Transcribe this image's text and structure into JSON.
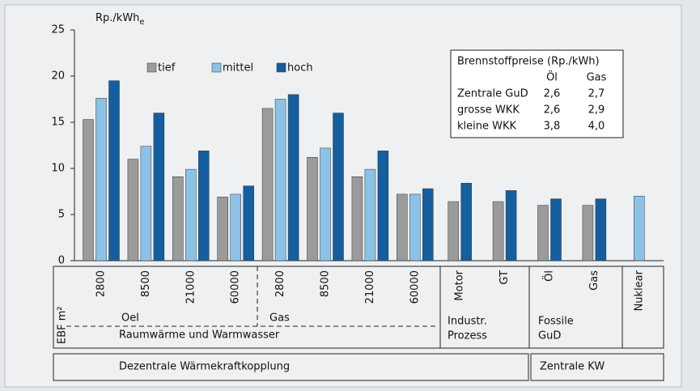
{
  "chart_data": {
    "type": "bar",
    "ylabel": "Rp./kWh",
    "ylabel_sub": "e",
    "ylim": [
      0,
      25
    ],
    "yticks": [
      0,
      5,
      10,
      15,
      20,
      25
    ],
    "grid": false,
    "legend": "top-left",
    "categories": [
      "2800",
      "8500",
      "21000",
      "60000",
      "2800",
      "8500",
      "21000",
      "60000",
      "Motor",
      "GT",
      "Öl",
      "Gas",
      "Nuklear"
    ],
    "series": [
      {
        "name": "tief",
        "color": "#9b9b9b",
        "values": [
          15.3,
          11.0,
          9.1,
          6.9,
          16.5,
          11.2,
          9.1,
          7.2,
          6.4,
          6.4,
          6.0,
          6.0,
          null
        ]
      },
      {
        "name": "mittel",
        "color": "#8cc2e6",
        "values": [
          17.6,
          12.4,
          9.9,
          7.2,
          17.5,
          12.2,
          9.9,
          7.2,
          null,
          null,
          null,
          null,
          7.0
        ]
      },
      {
        "name": "hoch",
        "color": "#135f9f",
        "values": [
          19.5,
          16.0,
          11.9,
          8.1,
          18.0,
          16.0,
          11.9,
          7.8,
          8.4,
          7.6,
          6.7,
          6.7,
          null
        ]
      }
    ],
    "category_axis_label": "EBF m²",
    "groups": [
      "Oel",
      "Gas",
      "Raumwärme und Warmwasser",
      [
        "Industr.",
        "Prozess"
      ],
      [
        "Fossile",
        "GuD"
      ],
      "Dezentrale Wärmekraftkopplung",
      "Zentrale KW"
    ],
    "inset": {
      "title": "Brennstoffpreise (Rp./kWh)",
      "columns": [
        "Öl",
        "Gas"
      ],
      "rows": [
        {
          "label": "Zentrale GuD",
          "values": [
            "2,6",
            "2,7"
          ]
        },
        {
          "label": "grosse WKK",
          "values": [
            "2,6",
            "2,9"
          ]
        },
        {
          "label": "kleine WKK",
          "values": [
            "3,8",
            "4,0"
          ]
        }
      ]
    }
  }
}
